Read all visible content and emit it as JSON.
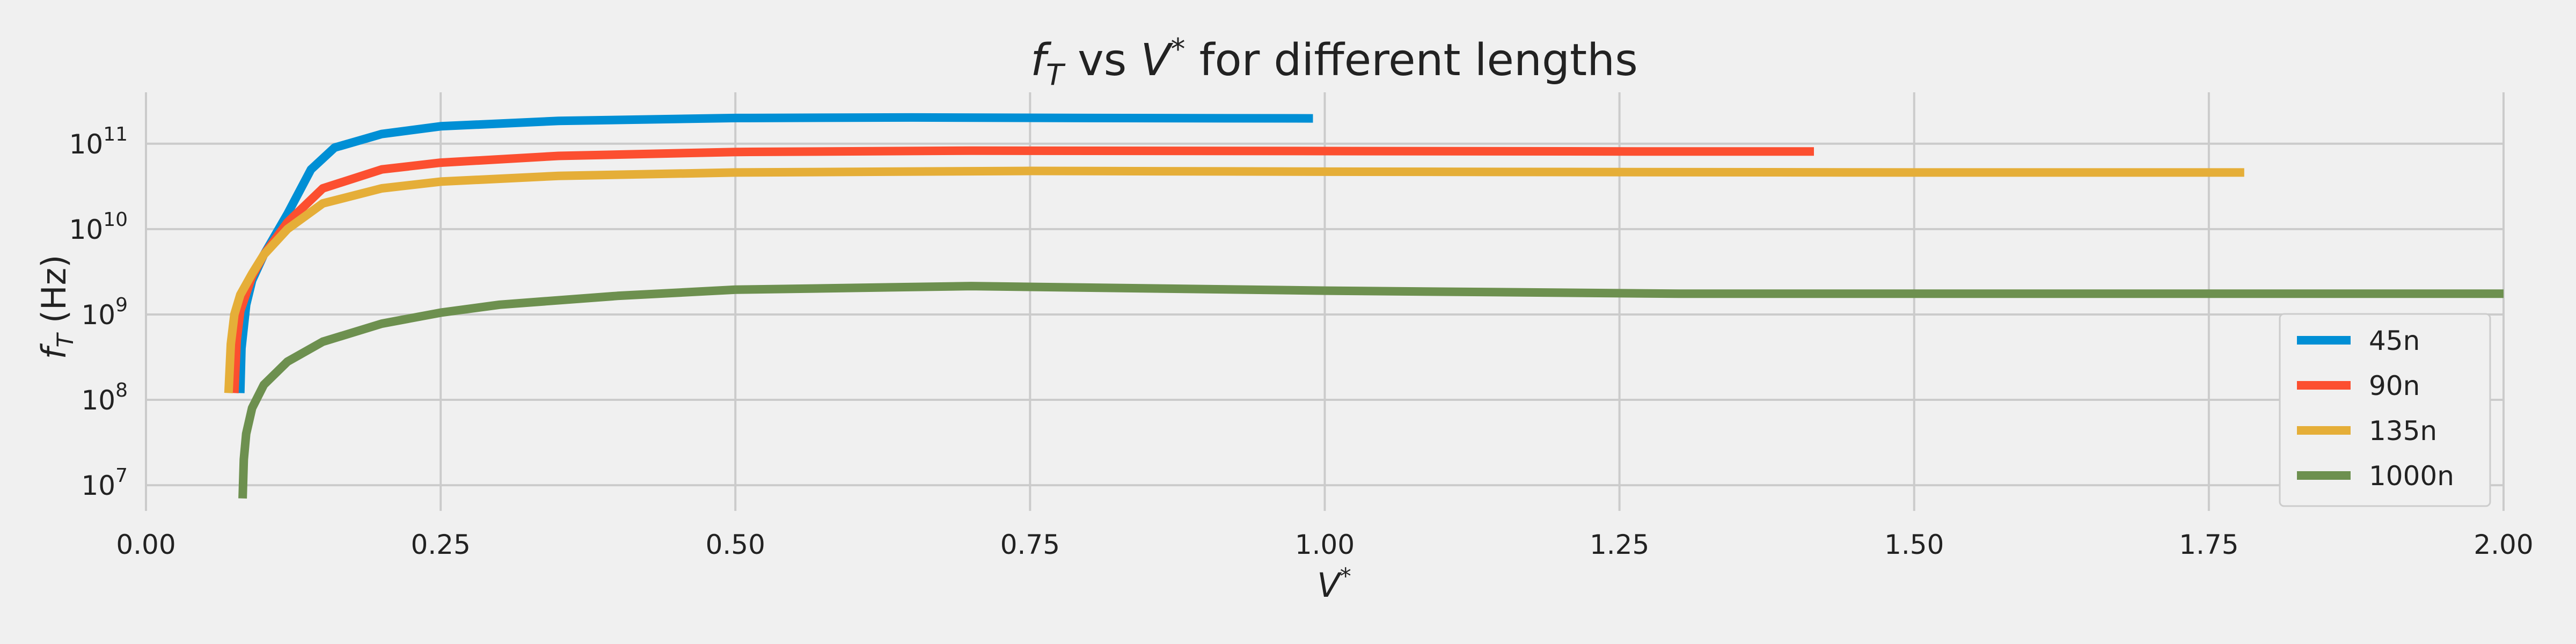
{
  "chart_data": {
    "type": "line",
    "title": "f_T vs V* for different lengths",
    "title_parts": {
      "lead": "f",
      "lead_sub": "T",
      "mid": " vs ",
      "var": "V",
      "var_sup": "*",
      "tail": " for different lengths"
    },
    "xlabel": "V*",
    "xlabel_parts": {
      "var": "V",
      "sup": "*"
    },
    "ylabel": "f_T (Hz)",
    "ylabel_parts": {
      "var": "f",
      "sub": "T",
      "unit": " (Hz)"
    },
    "xlim": [
      0,
      2.0
    ],
    "ylim": [
      5000000,
      400000000000
    ],
    "yscale": "log",
    "grid": true,
    "legend_position": "lower-right",
    "x_ticks": [
      {
        "value": 0.0,
        "label": "0.00"
      },
      {
        "value": 0.25,
        "label": "0.25"
      },
      {
        "value": 0.5,
        "label": "0.50"
      },
      {
        "value": 0.75,
        "label": "0.75"
      },
      {
        "value": 1.0,
        "label": "1.00"
      },
      {
        "value": 1.25,
        "label": "1.25"
      },
      {
        "value": 1.5,
        "label": "1.50"
      },
      {
        "value": 1.75,
        "label": "1.75"
      },
      {
        "value": 2.0,
        "label": "2.00"
      }
    ],
    "y_ticks": [
      {
        "value": 10000000,
        "base": "10",
        "exp": "7"
      },
      {
        "value": 100000000,
        "base": "10",
        "exp": "8"
      },
      {
        "value": 1000000000,
        "base": "10",
        "exp": "9"
      },
      {
        "value": 10000000000,
        "base": "10",
        "exp": "10"
      },
      {
        "value": 100000000000,
        "base": "10",
        "exp": "11"
      }
    ],
    "series": [
      {
        "name": "45n",
        "color": "#008fd5",
        "x": [
          0.08,
          0.081,
          0.085,
          0.09,
          0.1,
          0.12,
          0.14,
          0.16,
          0.2,
          0.25,
          0.35,
          0.5,
          0.65,
          0.8,
          0.99
        ],
        "y": [
          120000000,
          400000000,
          1300000000,
          2500000000,
          5000000000,
          15000000000,
          50000000000,
          90000000000,
          130000000000,
          160000000000,
          185000000000,
          200000000000,
          203000000000,
          200000000000,
          198000000000
        ]
      },
      {
        "name": "90n",
        "color": "#fc4f30",
        "x": [
          0.075,
          0.077,
          0.08,
          0.09,
          0.1,
          0.12,
          0.15,
          0.2,
          0.25,
          0.35,
          0.5,
          0.7,
          1.0,
          1.3,
          1.415
        ],
        "y": [
          120000000,
          500000000,
          1100000000,
          2800000000,
          5000000000,
          12000000000,
          30000000000,
          50000000000,
          60000000000,
          72000000000,
          80000000000,
          83000000000,
          82000000000,
          81000000000,
          81000000000
        ]
      },
      {
        "name": "135n",
        "color": "#e5ae38",
        "x": [
          0.07,
          0.072,
          0.075,
          0.08,
          0.09,
          0.1,
          0.12,
          0.15,
          0.2,
          0.25,
          0.35,
          0.5,
          0.75,
          1.0,
          1.5,
          1.78
        ],
        "y": [
          120000000,
          450000000,
          1000000000,
          1700000000,
          3000000000,
          5000000000,
          10000000000,
          20000000000,
          30000000000,
          36000000000,
          42000000000,
          46000000000,
          48000000000,
          47000000000,
          46000000000,
          46000000000
        ]
      },
      {
        "name": "1000n",
        "color": "#6d904f",
        "x": [
          0.082,
          0.083,
          0.085,
          0.09,
          0.1,
          0.12,
          0.15,
          0.2,
          0.25,
          0.3,
          0.4,
          0.5,
          0.7,
          1.0,
          1.3,
          1.6,
          2.0
        ],
        "y": [
          7000000,
          20000000,
          40000000,
          80000000,
          150000000,
          280000000,
          480000000,
          780000000,
          1050000000,
          1300000000,
          1650000000,
          1950000000,
          2150000000,
          1900000000,
          1750000000,
          1750000000,
          1750000000
        ]
      }
    ]
  }
}
